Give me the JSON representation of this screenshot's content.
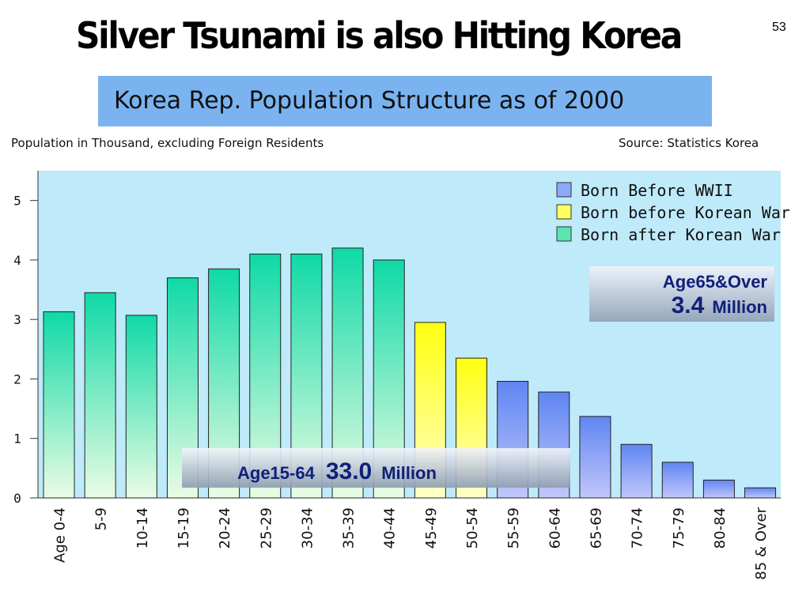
{
  "slide": {
    "title": "Silver Tsunami is also Hitting Korea",
    "page_number": "53"
  },
  "chart_title": "Korea Rep. Population Structure as of 2000",
  "note_left": "Population in Thousand, excluding Foreign Residents",
  "note_right": "Source: Statistics Korea",
  "chart_data": {
    "type": "bar",
    "title": "Korea Rep. Population Structure as of 2000",
    "xlabel": "",
    "ylabel": "",
    "ylim": [
      0,
      5.5
    ],
    "yticks": [
      "0",
      "1",
      "2",
      "3",
      "4",
      "5"
    ],
    "grid": false,
    "legend_placement": "top-right",
    "categories": [
      "Age 0-4",
      "5-9",
      "10-14",
      "15-19",
      "20-24",
      "25-29",
      "30-34",
      "35-39",
      "40-44",
      "45-49",
      "50-54",
      "55-59",
      "60-64",
      "65-69",
      "70-74",
      "75-79",
      "80-84",
      "85 & Over"
    ],
    "values": [
      3.13,
      3.45,
      3.07,
      3.7,
      3.85,
      4.1,
      4.1,
      4.2,
      4.0,
      2.95,
      2.35,
      1.96,
      1.78,
      1.37,
      0.9,
      0.6,
      0.3,
      0.17
    ],
    "groups": [
      0,
      0,
      0,
      0,
      0,
      0,
      0,
      0,
      0,
      1,
      1,
      2,
      2,
      2,
      2,
      2,
      2,
      2
    ],
    "legend": [
      {
        "name": "Born Before WWII",
        "color": "#8ca8f8"
      },
      {
        "name": "Born before Korean War",
        "color": "#ffff60"
      },
      {
        "name": "Born after Korean War",
        "color": "#5ce4b0"
      }
    ],
    "annotations": {
      "working_age": {
        "label": "Age15-64",
        "value": "33.0",
        "unit": "Million"
      },
      "elderly": {
        "label": "Age65&Over",
        "value": "3.4",
        "unit": "Million"
      }
    }
  },
  "colors": {
    "plot_background": "#bfeaf9",
    "title_box": "#7ab3f0",
    "annotation_text": "#10207a"
  }
}
